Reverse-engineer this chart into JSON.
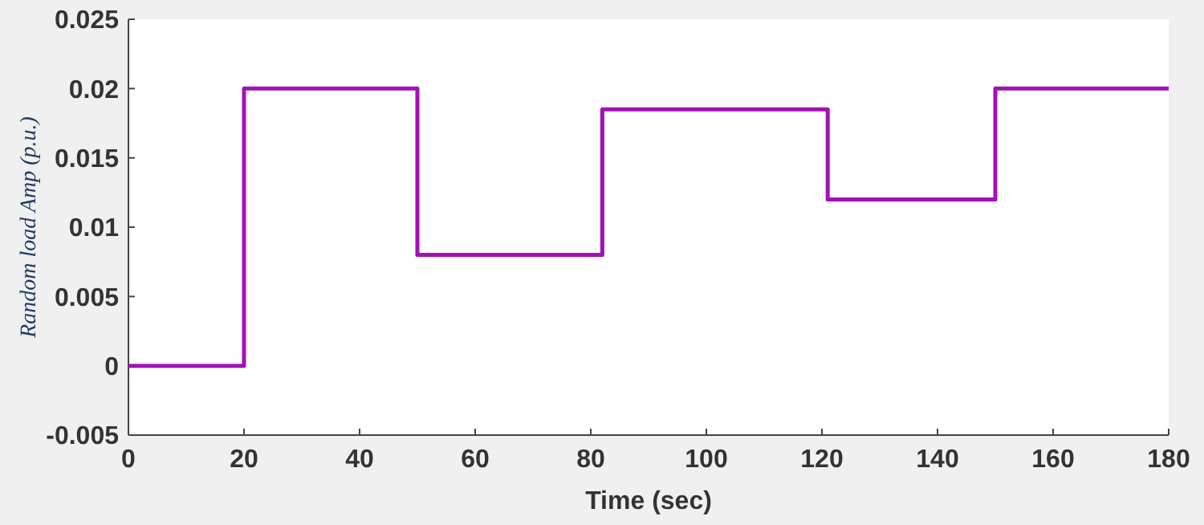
{
  "chart_data": {
    "type": "step",
    "xlabel": "Time (sec)",
    "ylabel": "Random load Amp (p.u.)",
    "x": [
      0,
      20,
      50,
      82,
      121,
      150,
      180
    ],
    "series": [
      {
        "color": "#a311b5",
        "values": [
          0,
          0.02,
          0.008,
          0.0185,
          0.012,
          0.02,
          0.02
        ]
      }
    ],
    "xlim": [
      0,
      180
    ],
    "xticks": [
      0,
      20,
      40,
      60,
      80,
      100,
      120,
      140,
      160,
      180
    ],
    "ylim": [
      -0.005,
      0.025
    ],
    "yticks": [
      -0.005,
      0,
      0.005,
      0.01,
      0.015,
      0.02,
      0.025
    ],
    "grid": false,
    "marker": "none",
    "line_style": "solid"
  }
}
